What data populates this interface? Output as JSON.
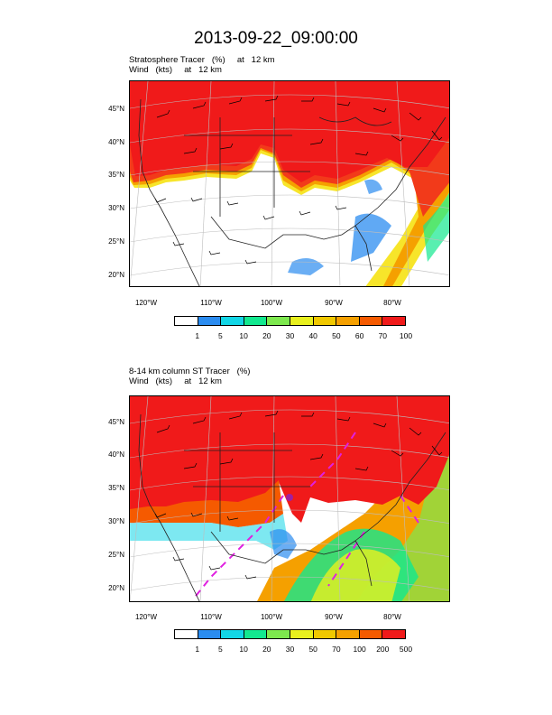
{
  "title": "2013-09-22_09:00:00",
  "panels": [
    {
      "subtitle_line1": "Stratosphere Tracer   (%)     at   12 km",
      "subtitle_line2": "Wind   (kts)     at   12 km",
      "lat_labels": [
        "45°N",
        "40°N",
        "35°N",
        "30°N",
        "25°N",
        "20°N"
      ],
      "lon_labels": [
        "120°W",
        "110°W",
        "100°W",
        "90°W",
        "80°W"
      ],
      "colorbar": {
        "colors": [
          "#ffffff",
          "#2b8cf0",
          "#12d6e6",
          "#12e88f",
          "#7de84e",
          "#e8f01e",
          "#f0c800",
          "#f5a000",
          "#f55a00",
          "#f01a1a"
        ],
        "labels": [
          "1",
          "5",
          "10",
          "20",
          "30",
          "40",
          "50",
          "60",
          "70",
          "100"
        ]
      }
    },
    {
      "subtitle_line1": "8-14 km column ST Tracer   (%)",
      "subtitle_line2": "Wind   (kts)     at   12 km",
      "lat_labels": [
        "45°N",
        "40°N",
        "35°N",
        "30°N",
        "25°N",
        "20°N"
      ],
      "lon_labels": [
        "120°W",
        "110°W",
        "100°W",
        "90°W",
        "80°W"
      ],
      "colorbar": {
        "colors": [
          "#ffffff",
          "#2b8cf0",
          "#12d6e6",
          "#12e88f",
          "#7de84e",
          "#e8f01e",
          "#f0c800",
          "#f5a000",
          "#f55a00",
          "#f01a1a"
        ],
        "labels": [
          "1",
          "5",
          "10",
          "20",
          "30",
          "50",
          "70",
          "100",
          "200",
          "500"
        ]
      }
    }
  ]
}
